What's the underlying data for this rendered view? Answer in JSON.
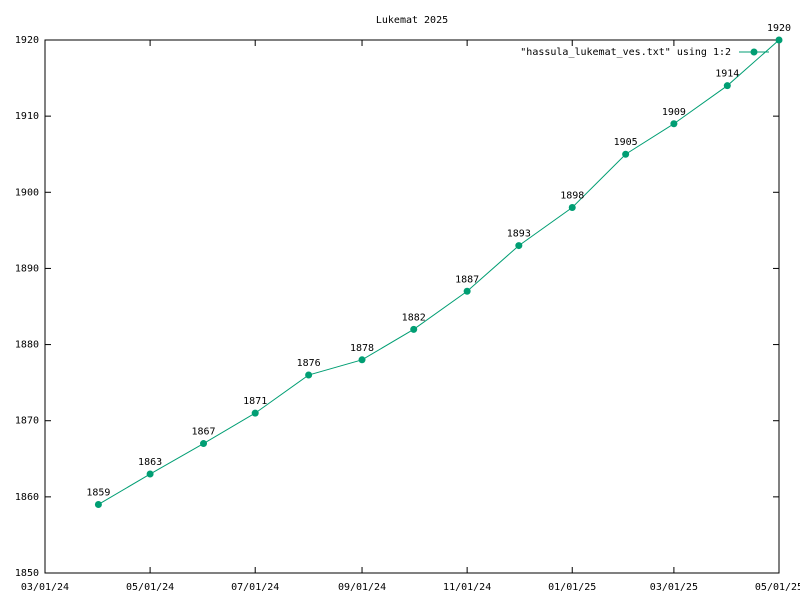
{
  "chart_data": {
    "type": "line",
    "title": "Lukemat 2025",
    "x": [
      "04/01/24",
      "05/01/24",
      "06/01/24",
      "07/01/24",
      "08/01/24",
      "09/01/24",
      "10/01/24",
      "11/01/24",
      "12/01/24",
      "01/01/25",
      "02/01/25",
      "03/01/25",
      "04/01/25",
      "05/01/25"
    ],
    "series": [
      {
        "name": "\"hassula_lukemat_ves.txt\" using 1:2",
        "color": "#009e73",
        "values": [
          1859,
          1863,
          1867,
          1871,
          1876,
          1878,
          1882,
          1887,
          1893,
          1898,
          1905,
          1909,
          1914,
          1920
        ]
      }
    ],
    "xlim": [
      "03/01/24",
      "05/01/25"
    ],
    "xticks": [
      "03/01/24",
      "05/01/24",
      "07/01/24",
      "09/01/24",
      "11/01/24",
      "01/01/25",
      "03/01/25",
      "05/01/25"
    ],
    "ylim": [
      1850,
      1920
    ],
    "yticks": [
      1850,
      1860,
      1870,
      1880,
      1890,
      1900,
      1910,
      1920
    ],
    "grid": false,
    "legend": "top right",
    "data_labels": true
  }
}
